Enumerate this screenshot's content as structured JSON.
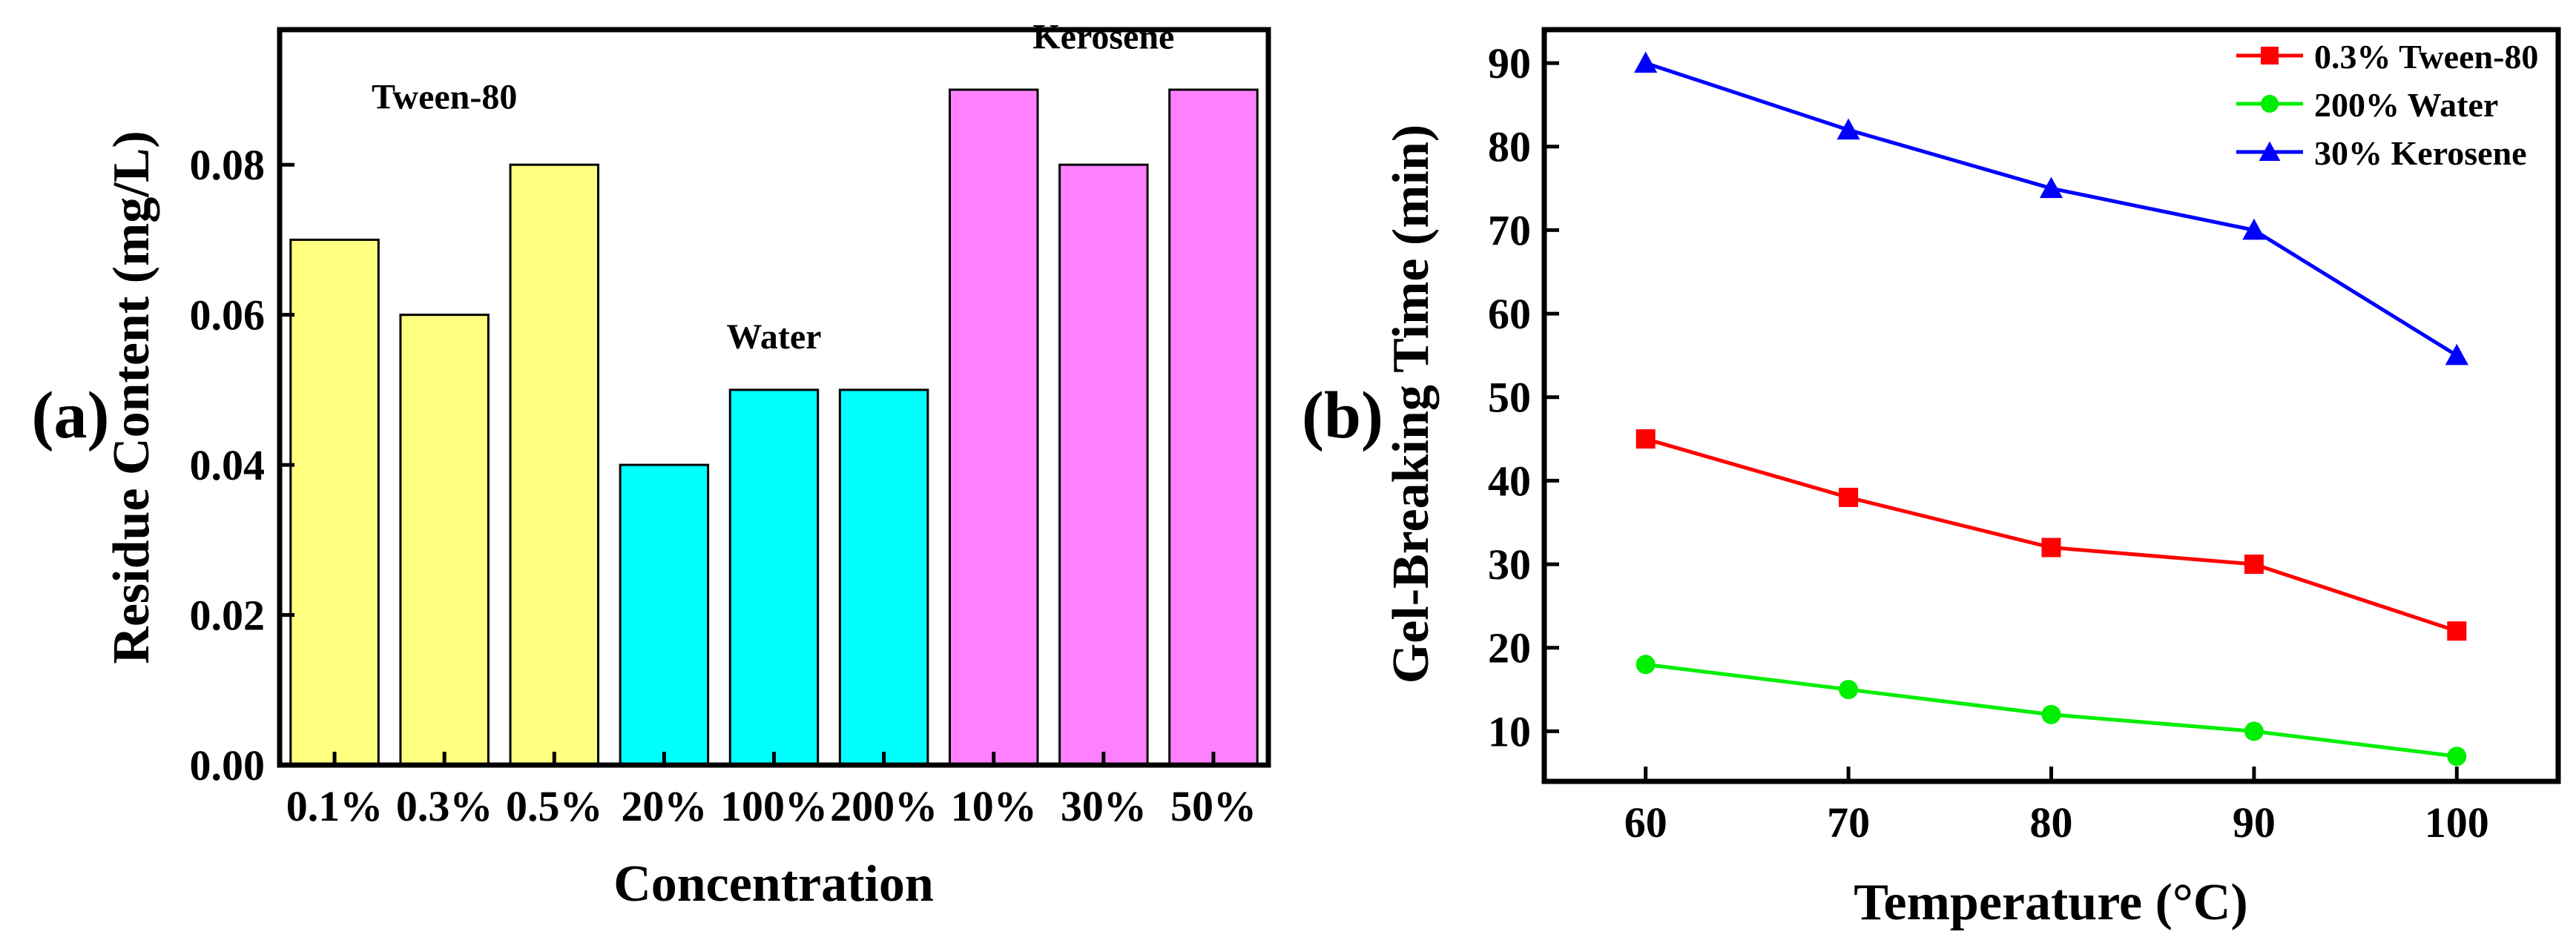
{
  "chart_data": [
    {
      "panel_label": "(a)",
      "type": "bar",
      "title": "",
      "xlabel": "Concentration",
      "ylabel": "Residue Content (mg/L)",
      "ylim": [
        0,
        0.098
      ],
      "yticks": [
        "0.00",
        "0.02",
        "0.04",
        "0.06",
        "0.08"
      ],
      "categories": [
        "0.1%",
        "0.3%",
        "0.5%",
        "20%",
        "100%",
        "200%",
        "10%",
        "30%",
        "50%"
      ],
      "values": [
        0.07,
        0.06,
        0.08,
        0.04,
        0.05,
        0.05,
        0.09,
        0.08,
        0.09
      ],
      "groups": [
        {
          "name": "Tween-80",
          "indices": [
            0,
            1,
            2
          ],
          "color": "#FFFF80"
        },
        {
          "name": "Water",
          "indices": [
            3,
            4,
            5
          ],
          "color": "#00FFFF"
        },
        {
          "name": "Kerosene",
          "indices": [
            6,
            7,
            8
          ],
          "color": "#FF80FF"
        }
      ],
      "grid": false
    },
    {
      "panel_label": "(b)",
      "type": "line",
      "title": "",
      "xlabel": "Temperature (°C)",
      "ylabel": "Gel-Breaking Time (min)",
      "xlim": [
        55,
        105
      ],
      "ylim": [
        4,
        94
      ],
      "xticks": [
        "60",
        "70",
        "80",
        "90",
        "100"
      ],
      "yticks": [
        "10",
        "20",
        "30",
        "40",
        "50",
        "60",
        "70",
        "80",
        "90"
      ],
      "x": [
        60,
        70,
        80,
        90,
        100
      ],
      "series": [
        {
          "name": "0.3% Tween-80",
          "values": [
            45,
            38,
            32,
            30,
            22
          ],
          "color": "#FF0000",
          "marker": "square"
        },
        {
          "name": "200% Water",
          "values": [
            18,
            15,
            12,
            10,
            7
          ],
          "color": "#00EE00",
          "marker": "circle"
        },
        {
          "name": "30% Kerosene",
          "values": [
            90,
            82,
            75,
            70,
            55
          ],
          "color": "#0000FF",
          "marker": "triangle"
        }
      ],
      "legend": "top-right",
      "grid": false
    }
  ]
}
